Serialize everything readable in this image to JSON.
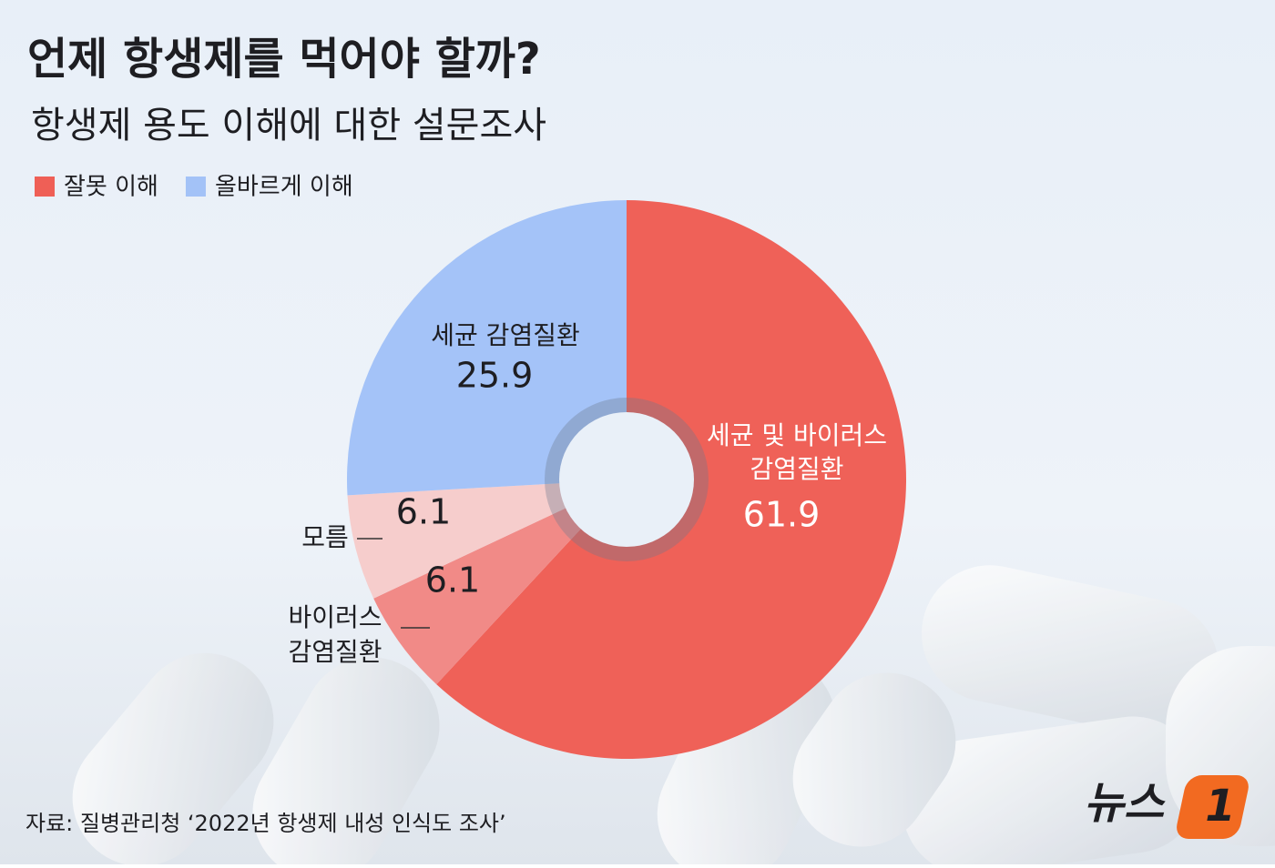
{
  "chart_data": {
    "type": "pie",
    "title": "언제 항생제를 먹어야 할까?",
    "subtitle": "항생제 용도 이해에 대한 설문조사",
    "legend": [
      {
        "name": "잘못 이해",
        "color": "#ef5f56"
      },
      {
        "name": "올바르게 이해",
        "color": "#a3c2f7"
      }
    ],
    "categories": [
      [
        "세균 및 바이러스",
        "감염질환"
      ],
      [
        "바이러스",
        "감염질환"
      ],
      [
        "모름"
      ],
      [
        "세균 감염질환"
      ]
    ],
    "values": [
      61.9,
      6.1,
      6.1,
      25.9
    ],
    "colors": [
      "#ef6158",
      "#f18a87",
      "#f6cdcc",
      "#a4c3f8"
    ],
    "source": "자료: 질병관리청 ‘2022년 항생제 내성 인식도 조사’",
    "logo": [
      "뉴스",
      "1"
    ]
  }
}
